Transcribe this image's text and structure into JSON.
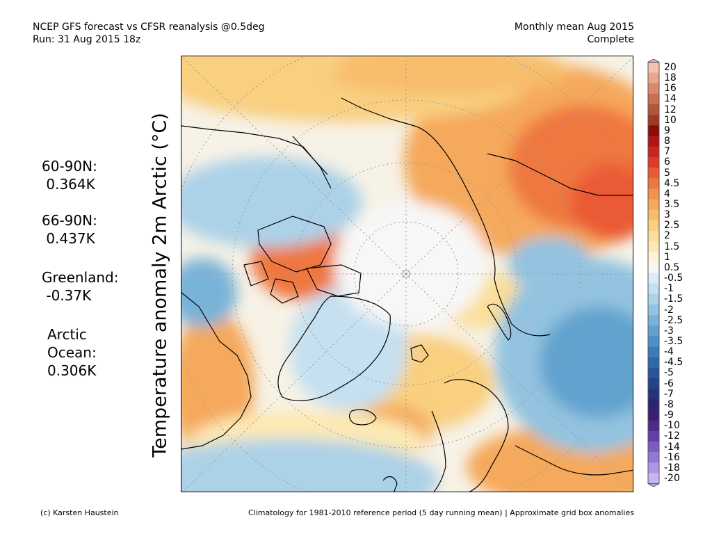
{
  "header": {
    "title_line1": "NCEP GFS forecast vs CFSR reanalysis @0.5deg",
    "title_line2": "Run: 31 Aug 2015 18z",
    "right_line1": "Monthly mean Aug 2015",
    "right_line2": "Complete"
  },
  "axis_label": "Temperature anomaly 2m Arctic (°C)",
  "stats": [
    {
      "lines": [
        "60-90N:",
        " 0.364K"
      ]
    },
    {
      "lines": [
        "66-90N:",
        " 0.437K"
      ]
    },
    {
      "lines": [
        "Greenland:",
        " -0.37K"
      ]
    },
    {
      "lines": [
        "Arctic",
        "Ocean:",
        "0.306K"
      ]
    }
  ],
  "footer": {
    "credit": "(c) Karsten Haustein",
    "note": "Climatology for 1981-2010 reference period (5 day running mean) | Approximate grid box anomalies"
  },
  "colorbar": {
    "labels": [
      "20",
      "18",
      "16",
      "14",
      "12",
      "10",
      "9",
      "8",
      "7",
      "6",
      "5",
      "4.5",
      "4",
      "3.5",
      "3",
      "2.5",
      "2",
      "1.5",
      "1",
      "0.5",
      "-0.5",
      "-1",
      "-1.5",
      "-2",
      "-2.5",
      "-3",
      "-3.5",
      "-4",
      "-4.5",
      "-5",
      "-6",
      "-7",
      "-8",
      "-9",
      "-10",
      "-12",
      "-14",
      "-16",
      "-18",
      "-20"
    ],
    "colors": [
      "#f2c4b0",
      "#e6a88c",
      "#d98a6e",
      "#c96f54",
      "#b4543c",
      "#9e3a28",
      "#8c0c0c",
      "#b01515",
      "#cc2424",
      "#de3a2a",
      "#ea5a36",
      "#ef7740",
      "#f2924c",
      "#f5a95c",
      "#f7bd6c",
      "#f9cf80",
      "#fbde98",
      "#fde9b4",
      "#fef4d6",
      "#f7f7f7",
      "#dcecf5",
      "#c5e0f0",
      "#acd2e8",
      "#93c3e0",
      "#7ab3d8",
      "#62a2cf",
      "#4c90c5",
      "#3a7cb8",
      "#2e68a8",
      "#285598",
      "#254488",
      "#26327a",
      "#2c2470",
      "#3a1f6e",
      "#4c2a8a",
      "#6240a8",
      "#7a5cc2",
      "#9478d6",
      "#ae96e4",
      "#c8b4f0"
    ]
  }
}
